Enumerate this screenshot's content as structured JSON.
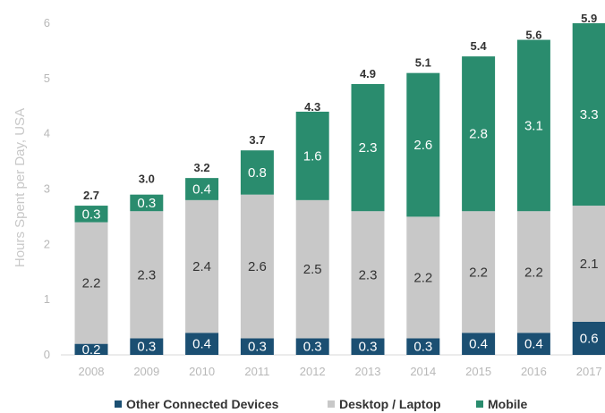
{
  "chart_data": {
    "type": "bar",
    "stacked": true,
    "categories": [
      "2008",
      "2009",
      "2010",
      "2011",
      "2012",
      "2013",
      "2014",
      "2015",
      "2016",
      "2017"
    ],
    "series": [
      {
        "name": "Other Connected Devices",
        "color": "#1b4f72",
        "values": [
          0.2,
          0.3,
          0.4,
          0.3,
          0.3,
          0.3,
          0.3,
          0.4,
          0.4,
          0.6
        ],
        "labels": [
          "0.2",
          "0.3",
          "0.4",
          "0.3",
          "0.3",
          "0.3",
          "0.3",
          "0.4",
          "0.4",
          "0.6"
        ]
      },
      {
        "name": "Desktop / Laptop",
        "color": "#c8c8c8",
        "values": [
          2.2,
          2.3,
          2.4,
          2.6,
          2.5,
          2.3,
          2.2,
          2.2,
          2.2,
          2.1
        ],
        "labels": [
          "2.2",
          "2.3",
          "2.4",
          "2.6",
          "2.5",
          "2.3",
          "2.2",
          "2.2",
          "2.2",
          "2.1"
        ]
      },
      {
        "name": "Mobile",
        "color": "#2a8c6e",
        "values": [
          0.3,
          0.3,
          0.4,
          0.8,
          1.6,
          2.3,
          2.6,
          2.8,
          3.1,
          3.3
        ],
        "labels": [
          "0.3",
          "0.3",
          "0.4",
          "0.8",
          "1.6",
          "2.3",
          "2.6",
          "2.8",
          "3.1",
          "3.3"
        ]
      }
    ],
    "totals": [
      "2.7",
      "3.0",
      "3.2",
      "3.7",
      "4.3",
      "4.9",
      "5.1",
      "5.4",
      "5.6",
      "5.9"
    ],
    "total_values": [
      2.7,
      3.0,
      3.2,
      3.7,
      4.3,
      4.9,
      5.1,
      5.4,
      5.6,
      5.9
    ],
    "ylabel": "Hours Spent per Day, USA",
    "xlabel": "",
    "ylim": [
      0,
      6
    ],
    "yticks": [
      "0",
      "1",
      "2",
      "3",
      "4",
      "5",
      "6"
    ],
    "grid": false,
    "legend_position": "bottom"
  }
}
